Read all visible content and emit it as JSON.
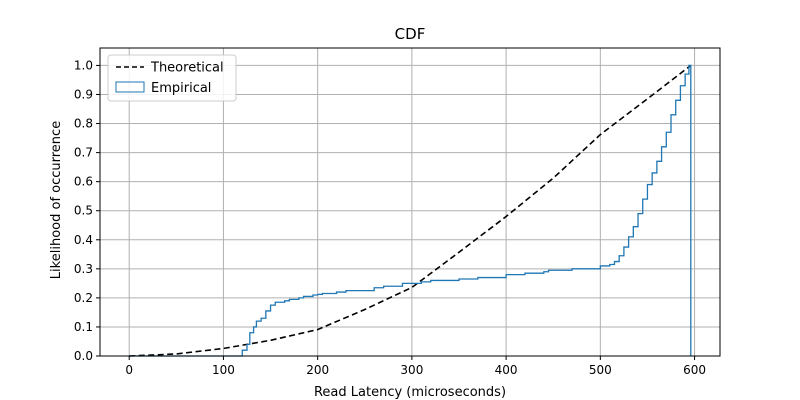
{
  "chart_data": {
    "type": "line",
    "title": "CDF",
    "xlabel": "Read Latency (microseconds)",
    "ylabel": "Likelihood of occurrence",
    "xlim": [
      -31,
      627
    ],
    "ylim": [
      0,
      1.06
    ],
    "xticks": [
      0,
      100,
      200,
      300,
      400,
      500,
      600
    ],
    "yticks": [
      0.0,
      0.1,
      0.2,
      0.3,
      0.4,
      0.5,
      0.6,
      0.7,
      0.8,
      0.9,
      1.0
    ],
    "ytick_labels": [
      "0.0",
      "0.1",
      "0.2",
      "0.3",
      "0.4",
      "0.5",
      "0.6",
      "0.7",
      "0.8",
      "0.9",
      "1.0"
    ],
    "grid": true,
    "legend_position": "top-left",
    "series": [
      {
        "name": "Theoretical",
        "style": "dashed",
        "color": "#000000",
        "x": [
          0,
          50,
          100,
          150,
          200,
          250,
          300,
          350,
          400,
          450,
          500,
          550,
          596
        ],
        "y": [
          0.0,
          0.007,
          0.026,
          0.054,
          0.091,
          0.16,
          0.236,
          0.357,
          0.48,
          0.612,
          0.762,
          0.885,
          1.0
        ]
      },
      {
        "name": "Empirical",
        "style": "step",
        "color": "#1f77b4",
        "x": [
          0,
          115,
          120,
          125,
          128,
          132,
          135,
          140,
          145,
          150,
          155,
          165,
          170,
          180,
          185,
          195,
          200,
          205,
          220,
          230,
          260,
          270,
          290,
          310,
          320,
          350,
          370,
          400,
          420,
          440,
          445,
          470,
          500,
          510,
          515,
          520,
          525,
          530,
          535,
          540,
          545,
          550,
          555,
          560,
          565,
          570,
          575,
          580,
          585,
          590,
          594,
          596,
          596
        ],
        "y": [
          0.0,
          0.0,
          0.02,
          0.04,
          0.08,
          0.1,
          0.12,
          0.13,
          0.155,
          0.175,
          0.185,
          0.19,
          0.195,
          0.2,
          0.205,
          0.21,
          0.212,
          0.215,
          0.22,
          0.225,
          0.235,
          0.24,
          0.25,
          0.255,
          0.26,
          0.265,
          0.27,
          0.28,
          0.285,
          0.29,
          0.295,
          0.3,
          0.31,
          0.315,
          0.325,
          0.345,
          0.375,
          0.41,
          0.445,
          0.49,
          0.54,
          0.59,
          0.63,
          0.67,
          0.72,
          0.77,
          0.83,
          0.88,
          0.93,
          0.97,
          1.0,
          1.0,
          0.0
        ]
      }
    ]
  }
}
